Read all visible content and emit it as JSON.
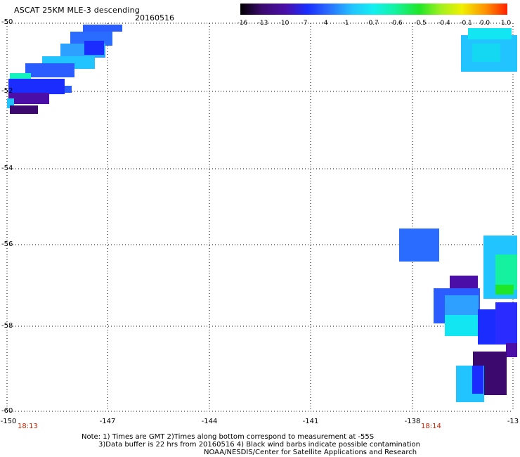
{
  "header": {
    "title": "ASCAT 25KM MLE-3 descending",
    "date": "20160516"
  },
  "colorbar": {
    "labels": [
      "-16",
      "-13",
      "-10",
      "-7",
      "-4",
      "-1",
      "-0.7",
      "-0.6",
      "-0.5",
      "-0.4",
      "-0.1",
      "0.0",
      "1.0"
    ]
  },
  "axes": {
    "lat_labels": [
      "-50",
      "-52",
      "-54",
      "-56",
      "-58",
      "-60"
    ],
    "lon_labels": [
      "-150",
      "-147",
      "-144",
      "-141",
      "-138",
      "-13"
    ]
  },
  "times": {
    "left": "18:13",
    "right": "18:14"
  },
  "notes": {
    "line1": "Note: 1) Times are GMT 2)Times along bottom correspond to measurement at -55S",
    "line2": "3)Data buffer is 22 hrs from 20160516 4) Black wind barbs indicate possible contamination",
    "line3": "NOAA/NESDIS/Center for Satellite Applications and Research"
  },
  "colors": {
    "dark_purple": "#3c0a6e",
    "purple": "#4b0fa8",
    "blue": "#1a2cff",
    "mid_blue": "#2a5cff",
    "light_blue": "#2ea0ff",
    "sky": "#22c4ff",
    "cyan": "#12e6f2",
    "aqua": "#14f2d8",
    "green": "#20e628",
    "red_text": "#cc2200"
  }
}
